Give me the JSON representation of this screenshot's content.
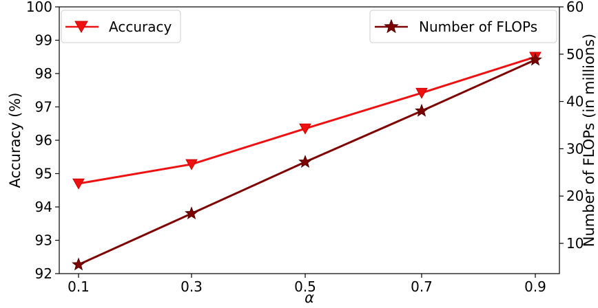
{
  "chart_data": {
    "type": "line",
    "title": "",
    "xlabel": "α",
    "x": [
      0.1,
      0.3,
      0.5,
      0.7,
      0.9
    ],
    "x_tick_labels": [
      "0.1",
      "0.3",
      "0.5",
      "0.7",
      "0.9"
    ],
    "y_left": {
      "label": "Accuracy (%)",
      "ylim": [
        92,
        100
      ],
      "ticks": [
        "92",
        "93",
        "94",
        "95",
        "96",
        "97",
        "98",
        "99",
        "100"
      ]
    },
    "y_right": {
      "label": "Number of FLOPs (in millions)",
      "ylim": [
        3.6,
        60
      ],
      "ticks": [
        "10",
        "20",
        "30",
        "40",
        "50",
        "60"
      ]
    },
    "series": [
      {
        "name": "Accuracy",
        "axis": "left",
        "marker": "triangle-down",
        "color": "#ee1111",
        "values": [
          94.7,
          95.28,
          96.35,
          97.42,
          98.5
        ]
      },
      {
        "name": "Number of FLOPs",
        "axis": "right",
        "marker": "star",
        "color": "#7f0000",
        "values": [
          5.5,
          16.3,
          27.2,
          38.0,
          48.8
        ]
      }
    ],
    "legends": [
      {
        "series": "Accuracy",
        "position": "top-left"
      },
      {
        "series": "Number of FLOPs",
        "position": "top-right"
      }
    ],
    "grid": false
  }
}
